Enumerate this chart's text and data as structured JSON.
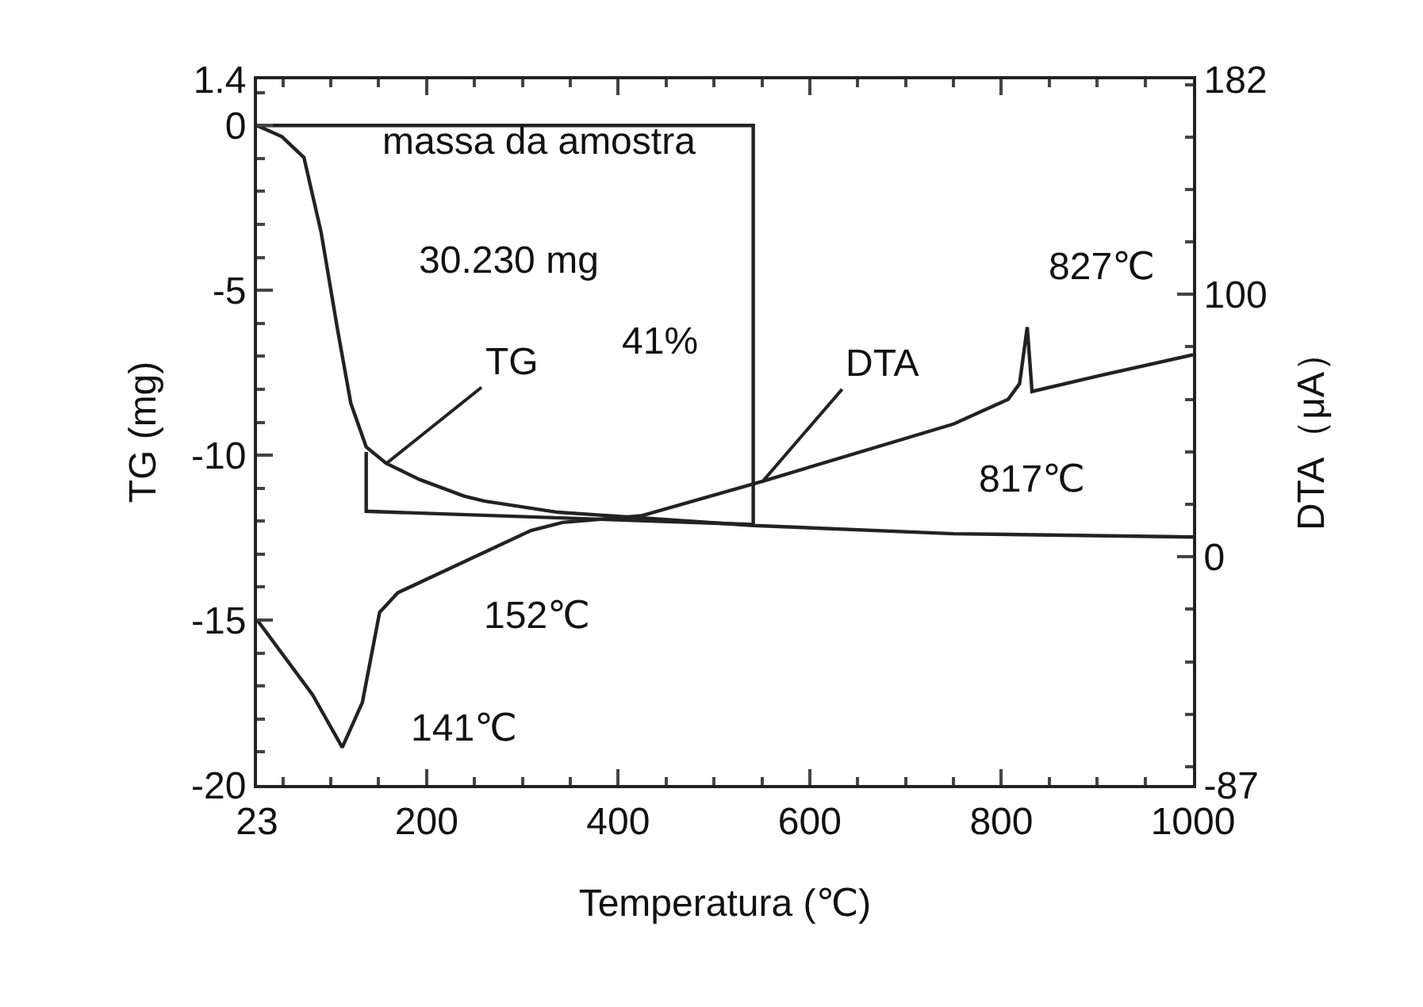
{
  "chart_data": {
    "type": "line",
    "xlabel": "Temperatura (℃)",
    "ylabel": "TG (mg)",
    "y2label": "DTA（μA）",
    "xlim": [
      23,
      1000
    ],
    "xticks": [
      23,
      200,
      400,
      600,
      800,
      1000
    ],
    "ylim": [
      -20,
      1.4
    ],
    "yticks": [
      -20,
      -15,
      -10,
      -5,
      0,
      1.4
    ],
    "y2lim": [
      -87,
      182
    ],
    "y2ticks": [
      -87,
      0,
      100,
      182
    ],
    "grid": false,
    "legend": false,
    "marker": "none",
    "line_style": "solid",
    "series": [
      {
        "name": "TG",
        "color": "#222222",
        "x": [
          23,
          49,
          72,
          90,
          107,
          121,
          137,
          158,
          193,
          239,
          260,
          337,
          541,
          750,
          1000
        ],
        "values": [
          0,
          -0.34,
          -0.97,
          -3.25,
          -6.18,
          -8.43,
          -9.75,
          -10.25,
          -10.74,
          -11.24,
          -11.39,
          -11.73,
          -12.13,
          -12.38,
          -12.48
        ]
      },
      {
        "name": "DTA",
        "color": "#222222",
        "axis": "y2",
        "x": [
          23,
          81,
          112,
          133,
          151,
          170,
          244,
          309,
          342,
          424,
          551,
          750,
          807,
          819,
          827,
          832,
          902,
          1000
        ],
        "values": [
          -24,
          -52.6,
          -72.7,
          -55.5,
          -21.2,
          -13.7,
          -1.1,
          10,
          13.1,
          15.6,
          28.8,
          50.6,
          60,
          66,
          87.5,
          63,
          69,
          77
        ]
      },
      {
        "color": "#222222",
        "x": [
          23,
          541,
          541
        ],
        "values": [
          0,
          0,
          -12.1
        ]
      },
      {
        "color": "#222222",
        "x": [
          137,
          137,
          541
        ],
        "values": [
          -9.9,
          -11.7,
          -12.1
        ]
      }
    ],
    "annotations": [
      "massa da amostra",
      "30.230 mg",
      "41%",
      "827℃",
      "817℃",
      "152℃",
      "141℃"
    ]
  }
}
